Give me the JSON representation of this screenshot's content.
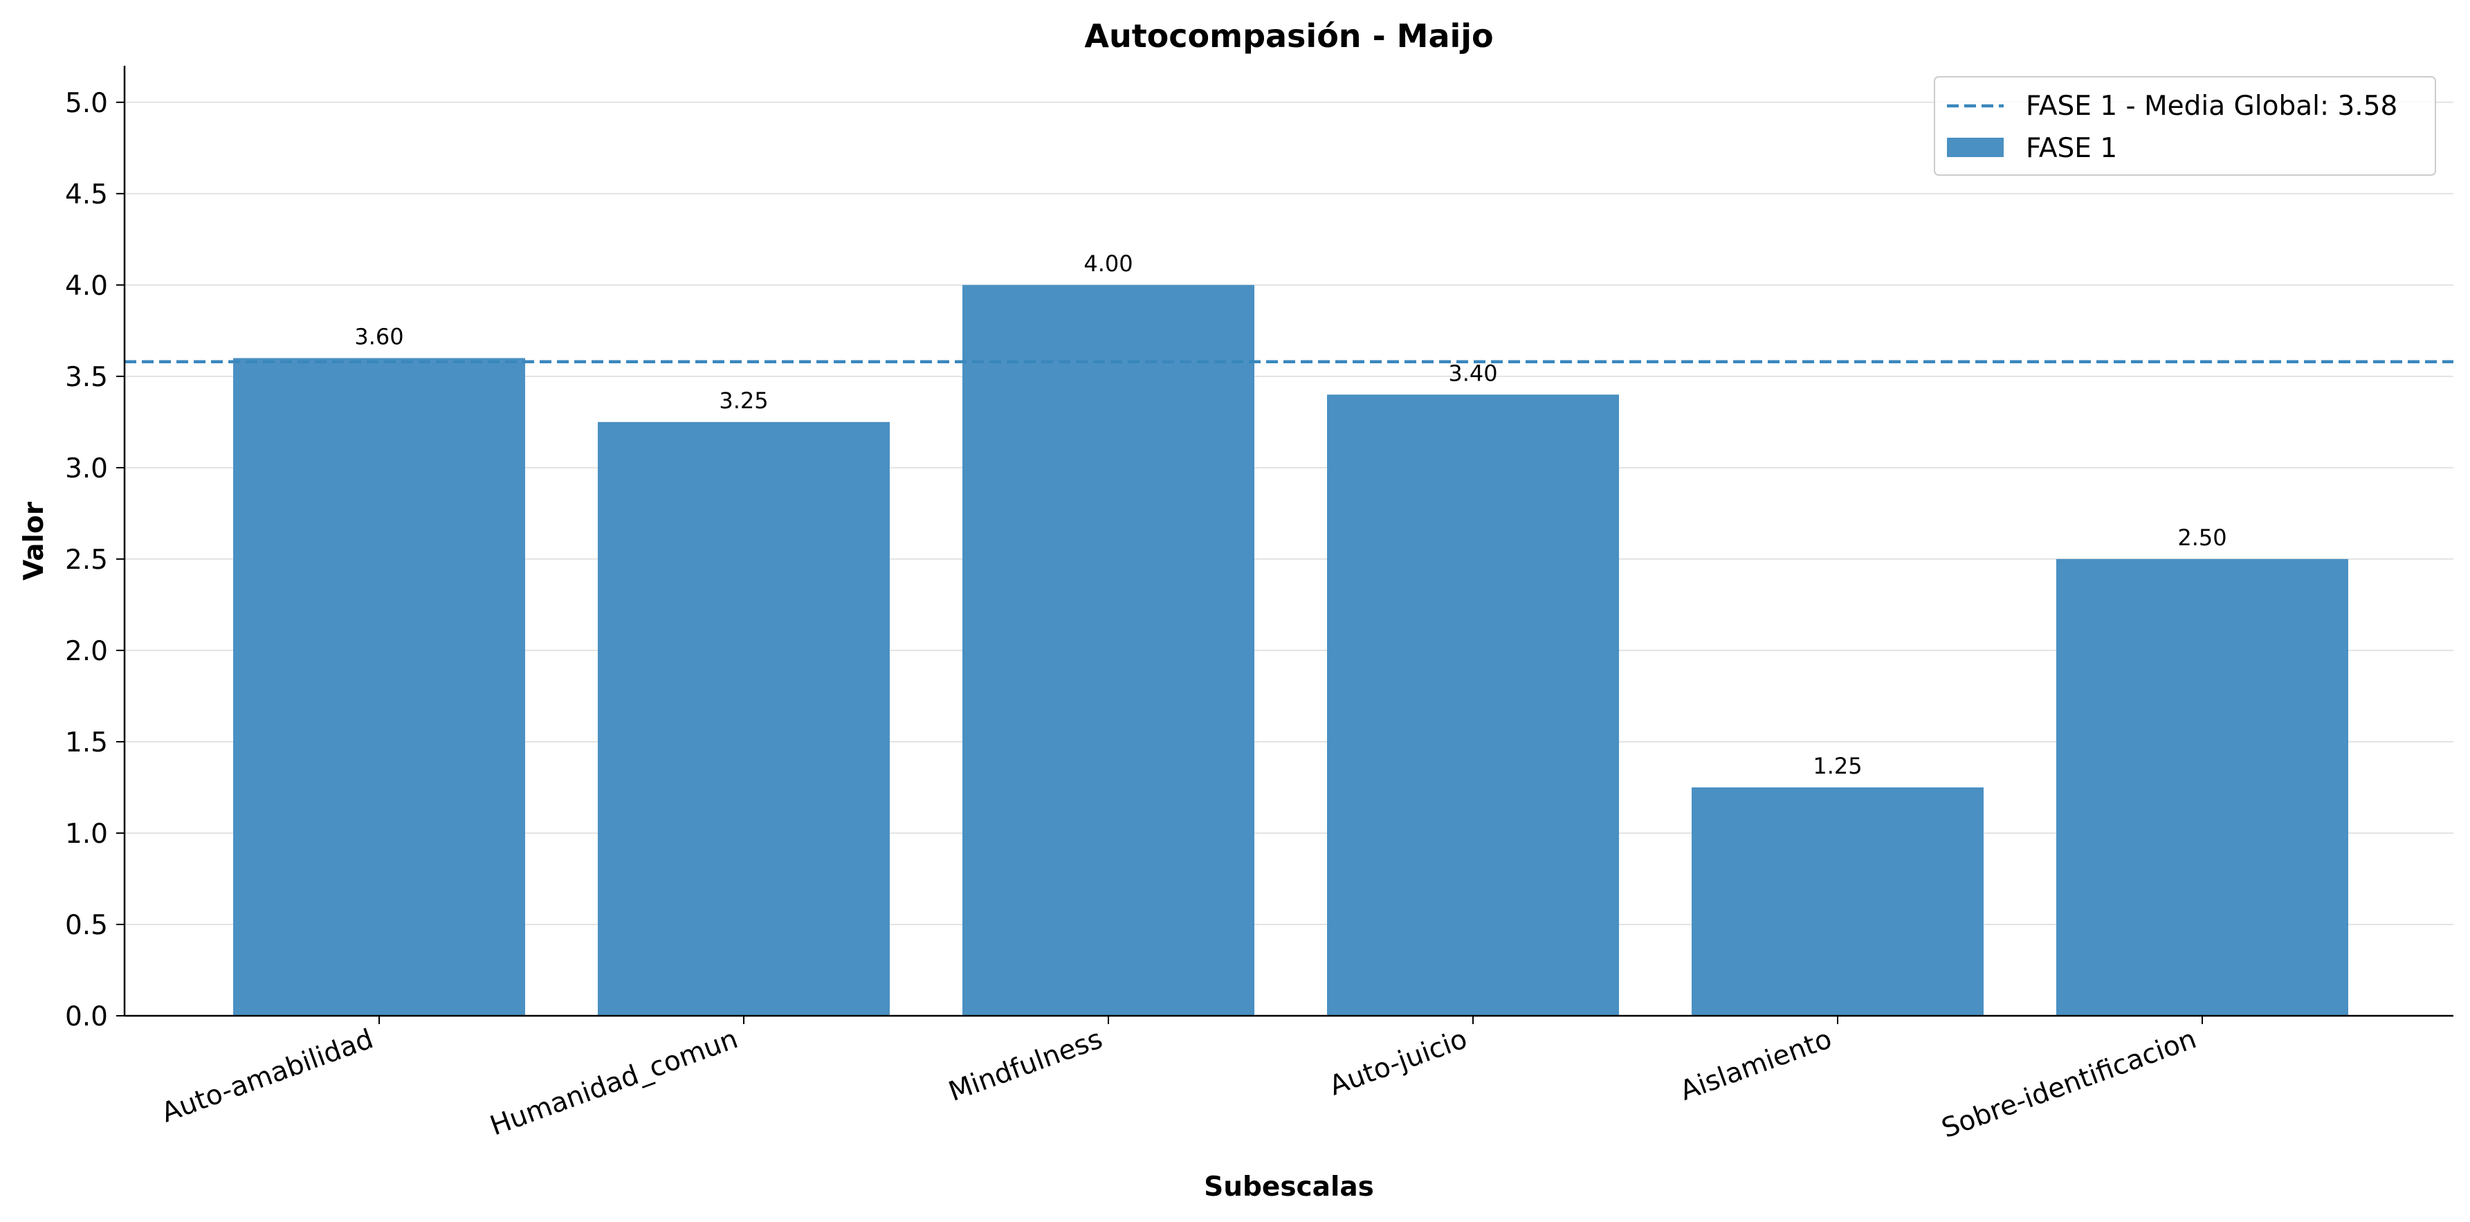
{
  "chart_data": {
    "type": "bar",
    "title": "Autocompasión - Maijo",
    "xlabel": "Subescalas",
    "ylabel": "Valor",
    "categories": [
      "Auto-amabilidad",
      "Humanidad_comun",
      "Mindfulness",
      "Auto-juicio",
      "Aislamiento",
      "Sobre-identificacion"
    ],
    "series": [
      {
        "name": "FASE 1",
        "values": [
          3.6,
          3.25,
          4.0,
          3.4,
          1.25,
          2.5
        ],
        "value_labels": [
          "3.60",
          "3.25",
          "4.00",
          "3.40",
          "1.25",
          "2.50"
        ],
        "color": "#4a90c2"
      }
    ],
    "reference_lines": [
      {
        "label": "FASE 1 - Media Global: 3.58",
        "value": 3.58,
        "style": "dashed",
        "color": "#3a87bd"
      }
    ],
    "ylim": [
      0,
      5.2
    ],
    "yticks": [
      "0.0",
      "0.5",
      "1.0",
      "1.5",
      "2.0",
      "2.5",
      "3.0",
      "3.5",
      "4.0",
      "4.5",
      "5.0"
    ],
    "grid": "horizontal",
    "legend_position": "top-right"
  }
}
